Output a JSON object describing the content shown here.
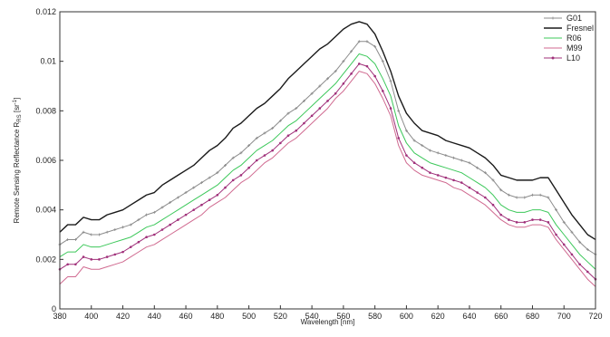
{
  "chart_data": {
    "type": "line",
    "xlabel": "Wavelength [nm]",
    "ylabel": "Remote Sensing Reflectance",
    "ylabel_sub": "RS",
    "ylabel_unit": "[sr",
    "ylabel_unit_sup": "-1",
    "ylabel_unit_end": "]",
    "xlim": [
      380,
      720
    ],
    "ylim": [
      0,
      0.012
    ],
    "x_ticks": [
      380,
      400,
      420,
      440,
      460,
      480,
      500,
      520,
      540,
      560,
      580,
      600,
      620,
      640,
      660,
      680,
      700,
      720
    ],
    "x_tick_labels": [
      "380",
      "400",
      "420",
      "440",
      "460",
      "480",
      "500",
      "520",
      "540",
      "560",
      "580",
      "600",
      "620",
      "640",
      "660",
      "680",
      "700",
      "720"
    ],
    "y_ticks": [
      0,
      0.002,
      0.004,
      0.006,
      0.008,
      0.01,
      0.012
    ],
    "y_tick_labels": [
      "0",
      "0.002",
      "0.004",
      "0.006",
      "0.008",
      "0.01",
      "0.012"
    ],
    "grid": false,
    "legend_position": "top-right",
    "x": [
      380,
      385,
      390,
      395,
      400,
      405,
      410,
      415,
      420,
      425,
      430,
      435,
      440,
      445,
      450,
      455,
      460,
      465,
      470,
      475,
      480,
      485,
      490,
      495,
      500,
      505,
      510,
      515,
      520,
      525,
      530,
      535,
      540,
      545,
      550,
      555,
      560,
      565,
      570,
      575,
      580,
      585,
      590,
      595,
      600,
      605,
      610,
      615,
      620,
      625,
      630,
      635,
      640,
      645,
      650,
      655,
      660,
      665,
      670,
      675,
      680,
      685,
      690,
      695,
      700,
      705,
      710,
      715,
      720
    ],
    "series": [
      {
        "name": "G01",
        "color": "#8c8c8c",
        "marker": "plus",
        "values": [
          0.0026,
          0.0028,
          0.0028,
          0.0031,
          0.003,
          0.003,
          0.0031,
          0.0032,
          0.0033,
          0.0034,
          0.0036,
          0.0038,
          0.0039,
          0.0041,
          0.0043,
          0.0045,
          0.0047,
          0.0049,
          0.0051,
          0.0053,
          0.0055,
          0.0058,
          0.0061,
          0.0063,
          0.0066,
          0.0069,
          0.0071,
          0.0073,
          0.0076,
          0.0079,
          0.0081,
          0.0084,
          0.0087,
          0.009,
          0.0093,
          0.0096,
          0.01,
          0.0104,
          0.0108,
          0.0108,
          0.0106,
          0.01,
          0.0092,
          0.008,
          0.0072,
          0.0068,
          0.0066,
          0.0064,
          0.0063,
          0.0062,
          0.0061,
          0.006,
          0.0059,
          0.0057,
          0.0055,
          0.0052,
          0.0048,
          0.0046,
          0.0045,
          0.0045,
          0.0046,
          0.0046,
          0.0045,
          0.004,
          0.0035,
          0.0031,
          0.0027,
          0.0024,
          0.0022
        ]
      },
      {
        "name": "Fresnel",
        "color": "#1a1a1a",
        "marker": "none",
        "values": [
          0.0031,
          0.0034,
          0.0034,
          0.0037,
          0.0036,
          0.0036,
          0.0038,
          0.0039,
          0.004,
          0.0042,
          0.0044,
          0.0046,
          0.0047,
          0.005,
          0.0052,
          0.0054,
          0.0056,
          0.0058,
          0.0061,
          0.0064,
          0.0066,
          0.0069,
          0.0073,
          0.0075,
          0.0078,
          0.0081,
          0.0083,
          0.0086,
          0.0089,
          0.0093,
          0.0096,
          0.0099,
          0.0102,
          0.0105,
          0.0107,
          0.011,
          0.0113,
          0.0115,
          0.0116,
          0.0115,
          0.0111,
          0.0104,
          0.0096,
          0.0086,
          0.0079,
          0.0075,
          0.0072,
          0.0071,
          0.007,
          0.0068,
          0.0067,
          0.0066,
          0.0065,
          0.0063,
          0.0061,
          0.0058,
          0.0054,
          0.0053,
          0.0052,
          0.0052,
          0.0052,
          0.0053,
          0.0053,
          0.0048,
          0.0043,
          0.0038,
          0.0034,
          0.003,
          0.0028
        ]
      },
      {
        "name": "R06",
        "color": "#3cc85a",
        "marker": "none",
        "values": [
          0.0021,
          0.0023,
          0.0023,
          0.0026,
          0.0025,
          0.0025,
          0.0026,
          0.0027,
          0.0028,
          0.0029,
          0.0031,
          0.0033,
          0.0034,
          0.0036,
          0.0038,
          0.004,
          0.0042,
          0.0044,
          0.0046,
          0.0048,
          0.005,
          0.0053,
          0.0056,
          0.0058,
          0.0061,
          0.0064,
          0.0066,
          0.0068,
          0.0071,
          0.0074,
          0.0076,
          0.0079,
          0.0082,
          0.0085,
          0.0088,
          0.0091,
          0.0095,
          0.0099,
          0.0103,
          0.0102,
          0.0099,
          0.0093,
          0.0086,
          0.0074,
          0.0067,
          0.0063,
          0.0061,
          0.0059,
          0.0058,
          0.0057,
          0.0056,
          0.0055,
          0.0053,
          0.0051,
          0.0049,
          0.0046,
          0.0042,
          0.004,
          0.0039,
          0.0039,
          0.004,
          0.004,
          0.0039,
          0.0034,
          0.003,
          0.0026,
          0.0022,
          0.0019,
          0.0016
        ]
      },
      {
        "name": "M99",
        "color": "#d06a90",
        "marker": "none",
        "values": [
          0.001,
          0.0013,
          0.0013,
          0.0017,
          0.0016,
          0.0016,
          0.0017,
          0.0018,
          0.0019,
          0.0021,
          0.0023,
          0.0025,
          0.0026,
          0.0028,
          0.003,
          0.0032,
          0.0034,
          0.0036,
          0.0038,
          0.0041,
          0.0043,
          0.0045,
          0.0048,
          0.0051,
          0.0053,
          0.0056,
          0.0059,
          0.0061,
          0.0064,
          0.0067,
          0.0069,
          0.0072,
          0.0075,
          0.0078,
          0.0081,
          0.0085,
          0.0088,
          0.0092,
          0.0096,
          0.0095,
          0.0091,
          0.0085,
          0.0078,
          0.0066,
          0.0059,
          0.0056,
          0.0054,
          0.0053,
          0.0052,
          0.0051,
          0.0049,
          0.0048,
          0.0046,
          0.0044,
          0.0042,
          0.0039,
          0.0036,
          0.0034,
          0.0033,
          0.0033,
          0.0034,
          0.0034,
          0.0033,
          0.0028,
          0.0024,
          0.002,
          0.0016,
          0.0012,
          0.0009
        ]
      },
      {
        "name": "L10",
        "color": "#a0307a",
        "marker": "dot",
        "values": [
          0.0016,
          0.0018,
          0.0018,
          0.0021,
          0.002,
          0.002,
          0.0021,
          0.0022,
          0.0023,
          0.0025,
          0.0027,
          0.0029,
          0.003,
          0.0032,
          0.0034,
          0.0036,
          0.0038,
          0.004,
          0.0042,
          0.0044,
          0.0046,
          0.0049,
          0.0052,
          0.0054,
          0.0057,
          0.006,
          0.0062,
          0.0064,
          0.0067,
          0.007,
          0.0072,
          0.0075,
          0.0078,
          0.0081,
          0.0084,
          0.0087,
          0.0091,
          0.0095,
          0.0099,
          0.0098,
          0.0094,
          0.0088,
          0.0081,
          0.0069,
          0.0062,
          0.0059,
          0.0057,
          0.0055,
          0.0054,
          0.0053,
          0.0052,
          0.0051,
          0.0049,
          0.0047,
          0.0045,
          0.0042,
          0.0038,
          0.0036,
          0.0035,
          0.0035,
          0.0036,
          0.0036,
          0.0035,
          0.003,
          0.0026,
          0.0022,
          0.0018,
          0.0015,
          0.0012
        ]
      }
    ]
  }
}
